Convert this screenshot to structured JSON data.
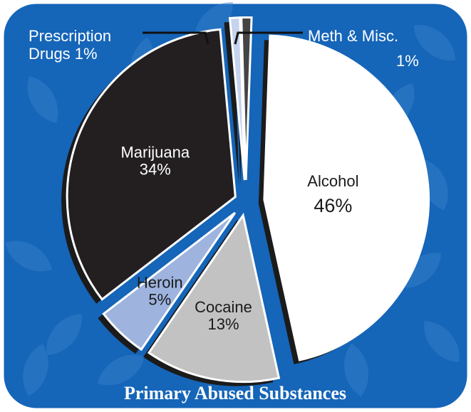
{
  "chart_data": {
    "type": "pie",
    "title": "Primary Abused Substances",
    "slices": [
      {
        "label": "Alcohol",
        "value": 46,
        "value_label": "46%",
        "color": "#ffffff",
        "text_color": "#1a1a1a"
      },
      {
        "label": "Cocaine",
        "value": 13,
        "value_label": "13%",
        "color": "#c2c2c2",
        "text_color": "#1a1a1a"
      },
      {
        "label": "Heroin",
        "value": 5,
        "value_label": "5%",
        "color": "#9eb4df",
        "text_color": "#1a1a1a"
      },
      {
        "label": "Marijuana",
        "value": 34,
        "value_label": "34%",
        "color": "#231f20",
        "text_color": "#ffffff"
      },
      {
        "label": "Prescription Drugs",
        "value": 1,
        "value_label": "1%",
        "color": "#c5d3ee",
        "text_color": "#ffffff"
      },
      {
        "label": "Meth & Misc.",
        "value": 1,
        "value_label": "1%",
        "color": "#444444",
        "text_color": "#ffffff"
      }
    ]
  },
  "callouts": {
    "prescription_line1": "Prescription",
    "prescription_line2": "Drugs  1%",
    "meth_line1": "Meth & Misc.",
    "meth_line2": "1%"
  },
  "colors": {
    "background": "#1565b8",
    "border": "#ffffff",
    "leaf": "#3c82cc",
    "slice_shadow": "#1b1b1b",
    "leader_line": "#111111"
  }
}
